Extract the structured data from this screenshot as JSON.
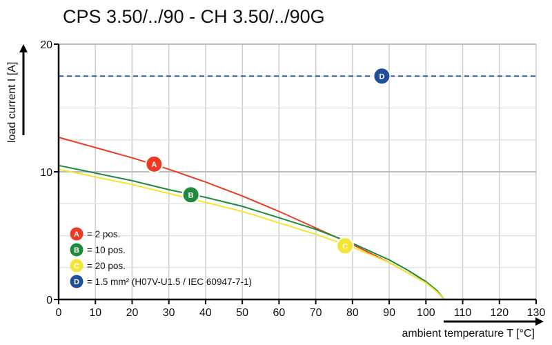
{
  "chart_data": {
    "type": "line",
    "title": "CPS 3.50/../90 - CH 3.50/../90G",
    "xlabel": "ambient temperature T [°C]",
    "ylabel": "load current I [A]",
    "xlim": [
      0,
      130
    ],
    "ylim": [
      0,
      20
    ],
    "x_ticks": [
      0,
      10,
      20,
      30,
      40,
      50,
      60,
      70,
      80,
      90,
      100,
      110,
      120,
      130
    ],
    "y_ticks": [
      0,
      10,
      20
    ],
    "grid": true,
    "legend_placement": "bottom-left",
    "series": [
      {
        "marker": "A",
        "name": "= 2 pos.",
        "color": "#ee3a24",
        "marker_at": [
          26,
          10.6
        ],
        "x": [
          0,
          10,
          20,
          30,
          40,
          50,
          60,
          70,
          80,
          90,
          95,
          100,
          103,
          105
        ],
        "y": [
          12.7,
          11.9,
          11.1,
          10.2,
          9.2,
          8.1,
          6.9,
          5.6,
          4.3,
          2.9,
          2.1,
          1.3,
          0.6,
          0
        ]
      },
      {
        "marker": "B",
        "name": "= 10 pos.",
        "color": "#1e8a3c",
        "marker_at": [
          36,
          8.2
        ],
        "x": [
          0,
          10,
          20,
          30,
          40,
          50,
          60,
          70,
          80,
          90,
          95,
          100,
          103,
          105
        ],
        "y": [
          10.5,
          9.9,
          9.3,
          8.6,
          8.0,
          7.3,
          6.4,
          5.5,
          4.4,
          3.1,
          2.3,
          1.4,
          0.7,
          0
        ]
      },
      {
        "marker": "C",
        "name": "= 20 pos.",
        "color": "#f4e534",
        "marker_at": [
          78,
          4.2
        ],
        "x": [
          0,
          10,
          20,
          30,
          40,
          50,
          60,
          70,
          80,
          90,
          95,
          100,
          103,
          105
        ],
        "y": [
          10.2,
          9.6,
          9.0,
          8.3,
          7.6,
          6.9,
          6.0,
          5.1,
          4.1,
          2.9,
          2.1,
          1.3,
          0.6,
          0
        ]
      },
      {
        "marker": "D",
        "name": "= 1.5 mm² (H07V-U1.5 / IEC 60947-7-1)",
        "color": "#1f4e9a",
        "marker_at": [
          88,
          17.5
        ],
        "style": "dashed",
        "x": [
          0,
          130
        ],
        "y": [
          17.5,
          17.5
        ]
      }
    ]
  }
}
